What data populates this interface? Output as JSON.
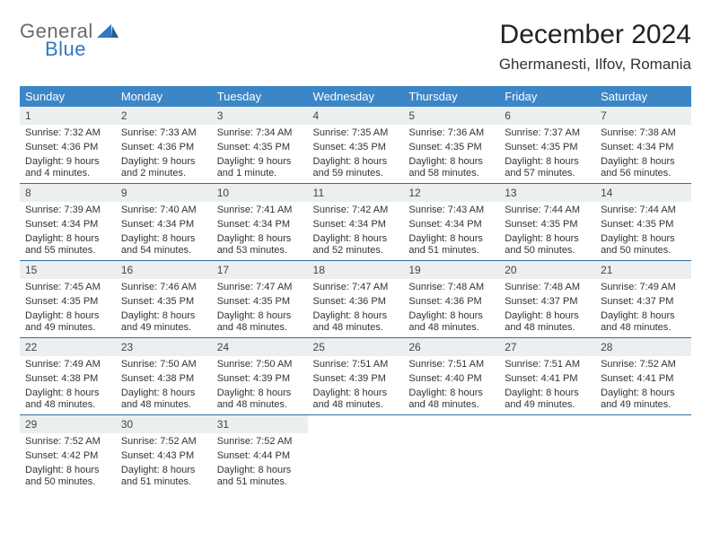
{
  "brand": {
    "word1": "General",
    "word2": "Blue"
  },
  "title": "December 2024",
  "location": "Ghermanesti, Ilfov, Romania",
  "colors": {
    "header_bg": "#3b86c7",
    "header_text": "#ffffff",
    "daynum_bg": "#eceff0",
    "week_border": "#2f6fa8",
    "brand_gray": "#6a6a6a",
    "brand_blue": "#2f79bf",
    "text": "#333333",
    "background": "#ffffff"
  },
  "typography": {
    "title_fontsize": 30,
    "location_fontsize": 17,
    "dayheader_fontsize": 13,
    "daynum_fontsize": 12,
    "body_fontsize": 11,
    "font_family": "Arial"
  },
  "day_headers": [
    "Sunday",
    "Monday",
    "Tuesday",
    "Wednesday",
    "Thursday",
    "Friday",
    "Saturday"
  ],
  "weeks": [
    [
      {
        "n": "1",
        "sr": "Sunrise: 7:32 AM",
        "ss": "Sunset: 4:36 PM",
        "dl1": "Daylight: 9 hours",
        "dl2": "and 4 minutes."
      },
      {
        "n": "2",
        "sr": "Sunrise: 7:33 AM",
        "ss": "Sunset: 4:36 PM",
        "dl1": "Daylight: 9 hours",
        "dl2": "and 2 minutes."
      },
      {
        "n": "3",
        "sr": "Sunrise: 7:34 AM",
        "ss": "Sunset: 4:35 PM",
        "dl1": "Daylight: 9 hours",
        "dl2": "and 1 minute."
      },
      {
        "n": "4",
        "sr": "Sunrise: 7:35 AM",
        "ss": "Sunset: 4:35 PM",
        "dl1": "Daylight: 8 hours",
        "dl2": "and 59 minutes."
      },
      {
        "n": "5",
        "sr": "Sunrise: 7:36 AM",
        "ss": "Sunset: 4:35 PM",
        "dl1": "Daylight: 8 hours",
        "dl2": "and 58 minutes."
      },
      {
        "n": "6",
        "sr": "Sunrise: 7:37 AM",
        "ss": "Sunset: 4:35 PM",
        "dl1": "Daylight: 8 hours",
        "dl2": "and 57 minutes."
      },
      {
        "n": "7",
        "sr": "Sunrise: 7:38 AM",
        "ss": "Sunset: 4:34 PM",
        "dl1": "Daylight: 8 hours",
        "dl2": "and 56 minutes."
      }
    ],
    [
      {
        "n": "8",
        "sr": "Sunrise: 7:39 AM",
        "ss": "Sunset: 4:34 PM",
        "dl1": "Daylight: 8 hours",
        "dl2": "and 55 minutes."
      },
      {
        "n": "9",
        "sr": "Sunrise: 7:40 AM",
        "ss": "Sunset: 4:34 PM",
        "dl1": "Daylight: 8 hours",
        "dl2": "and 54 minutes."
      },
      {
        "n": "10",
        "sr": "Sunrise: 7:41 AM",
        "ss": "Sunset: 4:34 PM",
        "dl1": "Daylight: 8 hours",
        "dl2": "and 53 minutes."
      },
      {
        "n": "11",
        "sr": "Sunrise: 7:42 AM",
        "ss": "Sunset: 4:34 PM",
        "dl1": "Daylight: 8 hours",
        "dl2": "and 52 minutes."
      },
      {
        "n": "12",
        "sr": "Sunrise: 7:43 AM",
        "ss": "Sunset: 4:34 PM",
        "dl1": "Daylight: 8 hours",
        "dl2": "and 51 minutes."
      },
      {
        "n": "13",
        "sr": "Sunrise: 7:44 AM",
        "ss": "Sunset: 4:35 PM",
        "dl1": "Daylight: 8 hours",
        "dl2": "and 50 minutes."
      },
      {
        "n": "14",
        "sr": "Sunrise: 7:44 AM",
        "ss": "Sunset: 4:35 PM",
        "dl1": "Daylight: 8 hours",
        "dl2": "and 50 minutes."
      }
    ],
    [
      {
        "n": "15",
        "sr": "Sunrise: 7:45 AM",
        "ss": "Sunset: 4:35 PM",
        "dl1": "Daylight: 8 hours",
        "dl2": "and 49 minutes."
      },
      {
        "n": "16",
        "sr": "Sunrise: 7:46 AM",
        "ss": "Sunset: 4:35 PM",
        "dl1": "Daylight: 8 hours",
        "dl2": "and 49 minutes."
      },
      {
        "n": "17",
        "sr": "Sunrise: 7:47 AM",
        "ss": "Sunset: 4:35 PM",
        "dl1": "Daylight: 8 hours",
        "dl2": "and 48 minutes."
      },
      {
        "n": "18",
        "sr": "Sunrise: 7:47 AM",
        "ss": "Sunset: 4:36 PM",
        "dl1": "Daylight: 8 hours",
        "dl2": "and 48 minutes."
      },
      {
        "n": "19",
        "sr": "Sunrise: 7:48 AM",
        "ss": "Sunset: 4:36 PM",
        "dl1": "Daylight: 8 hours",
        "dl2": "and 48 minutes."
      },
      {
        "n": "20",
        "sr": "Sunrise: 7:48 AM",
        "ss": "Sunset: 4:37 PM",
        "dl1": "Daylight: 8 hours",
        "dl2": "and 48 minutes."
      },
      {
        "n": "21",
        "sr": "Sunrise: 7:49 AM",
        "ss": "Sunset: 4:37 PM",
        "dl1": "Daylight: 8 hours",
        "dl2": "and 48 minutes."
      }
    ],
    [
      {
        "n": "22",
        "sr": "Sunrise: 7:49 AM",
        "ss": "Sunset: 4:38 PM",
        "dl1": "Daylight: 8 hours",
        "dl2": "and 48 minutes."
      },
      {
        "n": "23",
        "sr": "Sunrise: 7:50 AM",
        "ss": "Sunset: 4:38 PM",
        "dl1": "Daylight: 8 hours",
        "dl2": "and 48 minutes."
      },
      {
        "n": "24",
        "sr": "Sunrise: 7:50 AM",
        "ss": "Sunset: 4:39 PM",
        "dl1": "Daylight: 8 hours",
        "dl2": "and 48 minutes."
      },
      {
        "n": "25",
        "sr": "Sunrise: 7:51 AM",
        "ss": "Sunset: 4:39 PM",
        "dl1": "Daylight: 8 hours",
        "dl2": "and 48 minutes."
      },
      {
        "n": "26",
        "sr": "Sunrise: 7:51 AM",
        "ss": "Sunset: 4:40 PM",
        "dl1": "Daylight: 8 hours",
        "dl2": "and 48 minutes."
      },
      {
        "n": "27",
        "sr": "Sunrise: 7:51 AM",
        "ss": "Sunset: 4:41 PM",
        "dl1": "Daylight: 8 hours",
        "dl2": "and 49 minutes."
      },
      {
        "n": "28",
        "sr": "Sunrise: 7:52 AM",
        "ss": "Sunset: 4:41 PM",
        "dl1": "Daylight: 8 hours",
        "dl2": "and 49 minutes."
      }
    ],
    [
      {
        "n": "29",
        "sr": "Sunrise: 7:52 AM",
        "ss": "Sunset: 4:42 PM",
        "dl1": "Daylight: 8 hours",
        "dl2": "and 50 minutes."
      },
      {
        "n": "30",
        "sr": "Sunrise: 7:52 AM",
        "ss": "Sunset: 4:43 PM",
        "dl1": "Daylight: 8 hours",
        "dl2": "and 51 minutes."
      },
      {
        "n": "31",
        "sr": "Sunrise: 7:52 AM",
        "ss": "Sunset: 4:44 PM",
        "dl1": "Daylight: 8 hours",
        "dl2": "and 51 minutes."
      },
      {
        "empty": true,
        "n": "",
        "sr": "",
        "ss": "",
        "dl1": "",
        "dl2": ""
      },
      {
        "empty": true,
        "n": "",
        "sr": "",
        "ss": "",
        "dl1": "",
        "dl2": ""
      },
      {
        "empty": true,
        "n": "",
        "sr": "",
        "ss": "",
        "dl1": "",
        "dl2": ""
      },
      {
        "empty": true,
        "n": "",
        "sr": "",
        "ss": "",
        "dl1": "",
        "dl2": ""
      }
    ]
  ]
}
